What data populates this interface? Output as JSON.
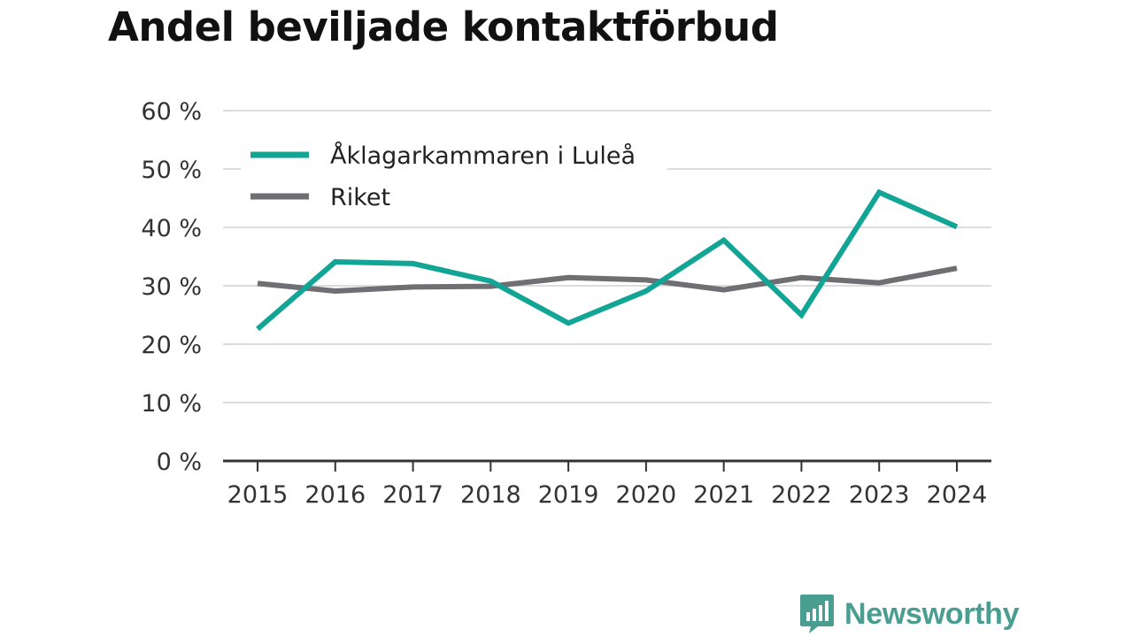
{
  "colors": {
    "series_primary": "#12a596",
    "series_secondary": "#6e6e73",
    "grid": "#dcdcdc",
    "axis": "#333333",
    "brand": "#4a9d91"
  },
  "brand": {
    "name": "Newsworthy",
    "icon": "newsworthy-logo-icon"
  },
  "chart_data": {
    "type": "line",
    "title": "Andel beviljade kontaktförbud",
    "xlabel": "",
    "ylabel": "",
    "x": [
      "2015",
      "2016",
      "2017",
      "2018",
      "2019",
      "2020",
      "2021",
      "2022",
      "2023",
      "2024"
    ],
    "series": [
      {
        "name": "Åklagarkammaren i Luleå",
        "values": [
          22.6,
          34.1,
          33.8,
          30.8,
          23.6,
          29.1,
          37.8,
          25.0,
          46.0,
          40.1
        ]
      },
      {
        "name": "Riket",
        "values": [
          30.4,
          29.1,
          29.8,
          29.9,
          31.4,
          31.0,
          29.3,
          31.4,
          30.5,
          33.0
        ]
      }
    ],
    "ylim": [
      0,
      60
    ],
    "yticks": [
      0,
      10,
      20,
      30,
      40,
      50,
      60
    ],
    "ytick_labels": [
      "0 %",
      "10 %",
      "20 %",
      "30 %",
      "40 %",
      "50 %",
      "60 %"
    ],
    "grid": true,
    "legend_position": "top-left"
  }
}
